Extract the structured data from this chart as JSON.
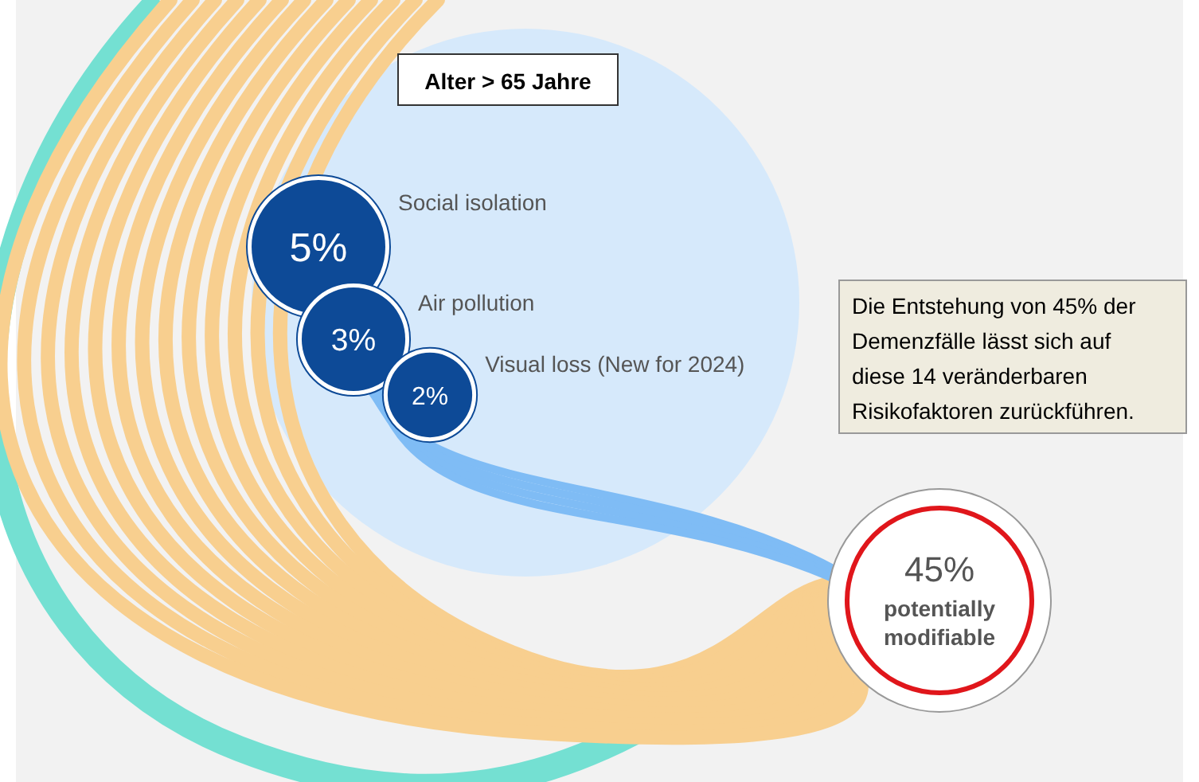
{
  "chart_data": {
    "type": "other",
    "title": "Alter > 65 Jahre",
    "categories": [
      "Social isolation",
      "Air pollution",
      "Visual loss (New for 2024)"
    ],
    "values": [
      5,
      3,
      2
    ],
    "value_labels": [
      "5%",
      "3%",
      "2%"
    ],
    "colors": [
      "#0d4a97",
      "#0d4a97",
      "#0d4a97"
    ],
    "annotations": [
      "45%",
      "potentially modifiable",
      "Die Entstehung von 45% der Demenzfälle lässt sich auf diese 14 veränderbaren Risikofaktoren zurückführen."
    ]
  }
}
